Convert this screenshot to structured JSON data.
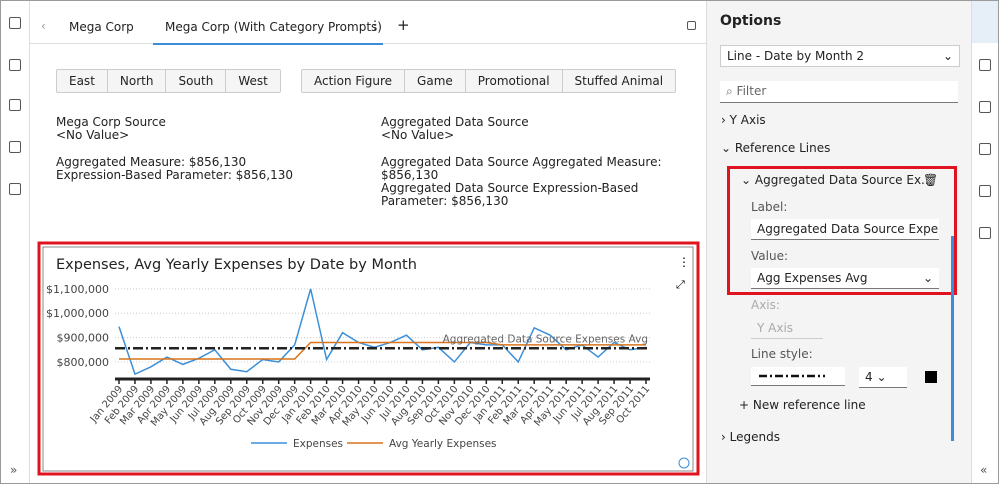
{
  "tabs": [
    "Mega Corp",
    "Mega Corp (With Category Prompts)"
  ],
  "filters": {
    "regions": [
      "East",
      "North",
      "South",
      "West"
    ],
    "categories": [
      "Action Figure",
      "Game",
      "Promotional",
      "Stuffed Animal"
    ]
  },
  "info": {
    "left": [
      "Mega Corp Source",
      "<No Value>",
      "Aggregated Measure: $856,130",
      "Expression-Based Parameter: $856,130"
    ],
    "right": [
      "Aggregated Data Source",
      "<No Value>",
      "Aggregated Data Source Aggregated Measure: $856,130",
      "Aggregated Data Source Expression-Based Parameter: $856,130"
    ]
  },
  "chart_data": {
    "type": "line",
    "title": "Expenses, Avg Yearly Expenses by Date by Month",
    "categories": [
      "Jan 2009",
      "Feb 2009",
      "Mar 2009",
      "Apr 2009",
      "May 2009",
      "Jun 2009",
      "Jul 2009",
      "Aug 2009",
      "Sep 2009",
      "Oct 2009",
      "Nov 2009",
      "Dec 2009",
      "Jan 2010",
      "Feb 2010",
      "Mar 2010",
      "Apr 2010",
      "May 2010",
      "Jun 2010",
      "Jul 2010",
      "Aug 2010",
      "Sep 2010",
      "Oct 2010",
      "Nov 2010",
      "Dec 2010",
      "Jan 2011",
      "Feb 2011",
      "Mar 2011",
      "Apr 2011",
      "May 2011",
      "Jun 2011",
      "Jul 2011",
      "Aug 2011",
      "Sep 2011",
      "Oct 2011"
    ],
    "series": [
      {
        "name": "Expenses",
        "color": "#3b8fd9",
        "values": [
          945000,
          750000,
          780000,
          820000,
          790000,
          815000,
          850000,
          770000,
          760000,
          810000,
          800000,
          870000,
          1100000,
          810000,
          920000,
          880000,
          860000,
          880000,
          910000,
          850000,
          860000,
          800000,
          880000,
          870000,
          870000,
          800000,
          940000,
          910000,
          850000,
          870000,
          820000,
          880000,
          850000,
          860000
        ]
      },
      {
        "name": "Avg Yearly Expenses",
        "color": "#d9731c",
        "values": [
          812000,
          812000,
          812000,
          812000,
          812000,
          812000,
          812000,
          812000,
          812000,
          812000,
          812000,
          812000,
          880000,
          880000,
          880000,
          880000,
          880000,
          880000,
          880000,
          880000,
          880000,
          880000,
          880000,
          880000,
          870000,
          870000,
          870000,
          870000,
          870000,
          870000,
          870000,
          870000,
          870000,
          870000
        ]
      }
    ],
    "reference_line": {
      "label": "Aggregated Data Source Expenses Avg",
      "value": 856130,
      "color": "#222222"
    },
    "ylim": [
      730000,
      1120000
    ],
    "yticks": [
      {
        "value": 800000,
        "label": "$800,000"
      },
      {
        "value": 900000,
        "label": "$900,000"
      },
      {
        "value": 1000000,
        "label": "$1,000,000"
      },
      {
        "value": 1100000,
        "label": "$1,100,000"
      }
    ],
    "grid": true
  },
  "options": {
    "title": "Options",
    "visualization": "Line - Date by Month 2",
    "filter_placeholder": "Filter",
    "sections": [
      "Y Axis",
      "Reference Lines",
      "Legends"
    ],
    "reference": {
      "name": "Aggregated Data Source Ex...",
      "label_caption": "Label:",
      "label_value": "Aggregated Data Source Expenses",
      "value_caption": "Value:",
      "value_value": "Agg Expenses Avg",
      "axis_caption": "Axis:",
      "axis_value": "Y Axis",
      "style_caption": "Line style:",
      "width": "4"
    },
    "new_reference": "New reference line"
  }
}
